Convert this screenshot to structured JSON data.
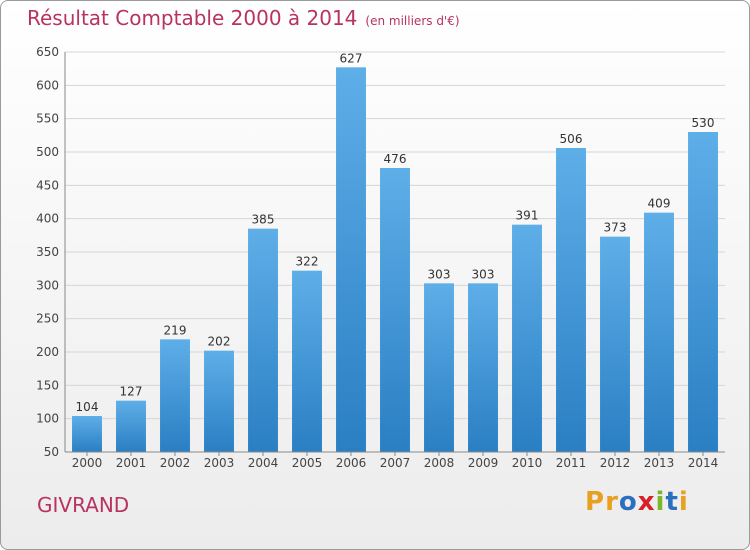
{
  "chart_data": {
    "type": "bar",
    "title": "Résultat Comptable 2000 à 2014",
    "subtitle": "(en milliers d'€)",
    "categories": [
      "2000",
      "2001",
      "2002",
      "2003",
      "2004",
      "2005",
      "2006",
      "2007",
      "2008",
      "2009",
      "2010",
      "2011",
      "2012",
      "2013",
      "2014"
    ],
    "values": [
      104,
      127,
      219,
      202,
      385,
      322,
      627,
      476,
      303,
      303,
      391,
      506,
      373,
      409,
      530
    ],
    "ylim": [
      50,
      650
    ],
    "yticks": [
      50,
      100,
      150,
      200,
      250,
      300,
      350,
      400,
      450,
      500,
      550,
      600,
      650
    ],
    "grid": true,
    "bar_color": "#3e96d8"
  },
  "footer": {
    "city": "GIVRAND",
    "logo": "Proxiti",
    "logo_colors": [
      "#e8a020",
      "#e8a020",
      "#2d6fbf",
      "#d8202a",
      "#7ab828",
      "#2d6fbf",
      "#e8a020"
    ]
  }
}
